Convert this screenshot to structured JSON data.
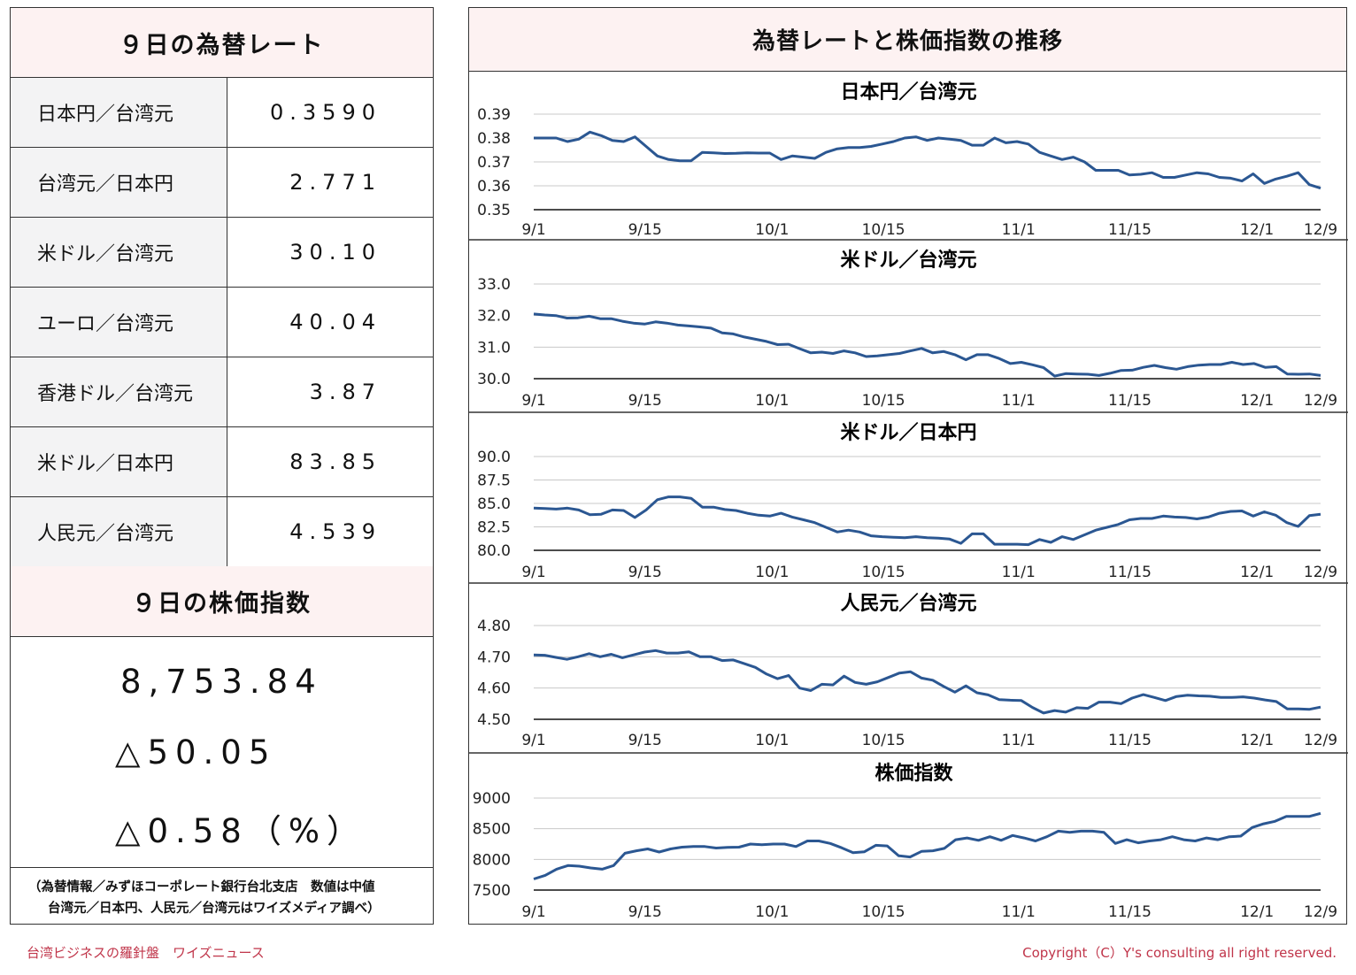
{
  "rates": {
    "title": "９日の為替レート",
    "rows": [
      {
        "label": "日本円／台湾元",
        "value": "0.3590"
      },
      {
        "label": "台湾元／日本円",
        "value": "2.771"
      },
      {
        "label": "米ドル／台湾元",
        "value": "30.10"
      },
      {
        "label": "ユーロ／台湾元",
        "value": "40.04"
      },
      {
        "label": "香港ドル／台湾元",
        "value": "3.87"
      },
      {
        "label": "米ドル／日本円",
        "value": "83.85"
      },
      {
        "label": "人民元／台湾元",
        "value": "4.539"
      }
    ]
  },
  "stock": {
    "title": "９日の株価指数",
    "index": "8,753.84",
    "change": "△50.05",
    "percent": "△0.58（%）"
  },
  "note": {
    "line1": "（為替情報／みずほコーポレート銀行台北支店　数値は中値",
    "line2": "台湾元／日本円、人民元／台湾元はワイズメディア調べ）"
  },
  "right_title": "為替レートと株価指数の推移",
  "footer": {
    "left": "台湾ビジネスの羅針盤　ワイズニュース",
    "right": "Copyright（C）Y's consulting all right reserved."
  },
  "colors": {
    "line": "#2b5792",
    "header_bg": "#fdf2f2",
    "label_bg": "#f3f3f4",
    "footer": "#c0354a"
  },
  "chart_data": [
    {
      "type": "line",
      "title": "日本円／台湾元",
      "x_ticks": [
        "9/1",
        "9/15",
        "10/1",
        "10/15",
        "11/1",
        "11/15",
        "12/1",
        "12/9"
      ],
      "y_ticks": [
        "0.35",
        "0.36",
        "0.37",
        "0.38",
        "0.39"
      ],
      "ylim": [
        0.35,
        0.39
      ],
      "values": [
        0.38,
        0.38,
        0.38,
        0.3785,
        0.3795,
        0.3825,
        0.381,
        0.379,
        0.3785,
        0.3805,
        0.3765,
        0.3725,
        0.371,
        0.3705,
        0.3705,
        0.374,
        0.3738,
        0.3735,
        0.3736,
        0.3738,
        0.3737,
        0.3737,
        0.371,
        0.3725,
        0.372,
        0.3715,
        0.374,
        0.3755,
        0.376,
        0.376,
        0.3765,
        0.3775,
        0.3785,
        0.38,
        0.3805,
        0.379,
        0.38,
        0.3795,
        0.379,
        0.377,
        0.377,
        0.38,
        0.378,
        0.3785,
        0.3775,
        0.374,
        0.3725,
        0.371,
        0.372,
        0.37,
        0.3665,
        0.3665,
        0.3665,
        0.3645,
        0.3648,
        0.3655,
        0.3635,
        0.3635,
        0.3645,
        0.3655,
        0.365,
        0.3635,
        0.3632,
        0.362,
        0.365,
        0.361,
        0.3628,
        0.364,
        0.3655,
        0.3605,
        0.359
      ]
    },
    {
      "type": "line",
      "title": "米ドル／台湾元",
      "x_ticks": [
        "9/1",
        "9/15",
        "10/1",
        "10/15",
        "11/1",
        "11/15",
        "12/1",
        "12/9"
      ],
      "y_ticks": [
        "30.0",
        "31.0",
        "32.0",
        "33.0"
      ],
      "ylim": [
        30.0,
        33.0
      ],
      "values": [
        32.05,
        32.02,
        32.0,
        31.92,
        31.93,
        31.98,
        31.9,
        31.9,
        31.82,
        31.76,
        31.73,
        31.8,
        31.76,
        31.7,
        31.67,
        31.64,
        31.6,
        31.45,
        31.42,
        31.32,
        31.25,
        31.18,
        31.08,
        31.09,
        30.95,
        30.82,
        30.84,
        30.8,
        30.88,
        30.82,
        30.7,
        30.72,
        30.76,
        30.8,
        30.88,
        30.96,
        30.82,
        30.86,
        30.76,
        30.6,
        30.76,
        30.76,
        30.64,
        30.48,
        30.52,
        30.44,
        30.35,
        30.08,
        30.16,
        30.15,
        30.14,
        30.1,
        30.17,
        30.26,
        30.27,
        30.36,
        30.42,
        30.35,
        30.3,
        30.38,
        30.43,
        30.45,
        30.45,
        30.52,
        30.45,
        30.48,
        30.36,
        30.38,
        30.15,
        30.14,
        30.15,
        30.1
      ]
    },
    {
      "type": "line",
      "title": "米ドル／日本円",
      "x_ticks": [
        "9/1",
        "9/15",
        "10/1",
        "10/15",
        "11/1",
        "11/15",
        "12/1",
        "12/9"
      ],
      "y_ticks": [
        "80.0",
        "82.5",
        "85.0",
        "87.5",
        "90.0"
      ],
      "ylim": [
        80.0,
        90.0
      ],
      "values": [
        84.5,
        84.45,
        84.4,
        84.5,
        84.3,
        83.8,
        83.85,
        84.3,
        84.25,
        83.5,
        84.3,
        85.4,
        85.7,
        85.7,
        85.55,
        84.6,
        84.6,
        84.35,
        84.25,
        83.95,
        83.75,
        83.65,
        83.95,
        83.55,
        83.25,
        82.95,
        82.45,
        81.95,
        82.15,
        81.95,
        81.55,
        81.45,
        81.4,
        81.35,
        81.45,
        81.35,
        81.3,
        81.2,
        80.75,
        81.75,
        81.75,
        80.65,
        80.65,
        80.65,
        80.6,
        81.15,
        80.85,
        81.45,
        81.15,
        81.65,
        82.15,
        82.45,
        82.75,
        83.25,
        83.4,
        83.4,
        83.65,
        83.55,
        83.5,
        83.35,
        83.55,
        83.95,
        84.15,
        84.2,
        83.65,
        84.1,
        83.75,
        82.95,
        82.55,
        83.7,
        83.85
      ]
    },
    {
      "type": "line",
      "title": "人民元／台湾元",
      "x_ticks": [
        "9/1",
        "9/15",
        "10/1",
        "10/15",
        "11/1",
        "11/15",
        "12/1",
        "12/9"
      ],
      "y_ticks": [
        "4.50",
        "4.60",
        "4.70",
        "4.80"
      ],
      "ylim": [
        4.5,
        4.8
      ],
      "values": [
        4.706,
        4.705,
        4.698,
        4.692,
        4.7,
        4.71,
        4.7,
        4.708,
        4.697,
        4.706,
        4.715,
        4.72,
        4.712,
        4.712,
        4.716,
        4.7,
        4.7,
        4.688,
        4.69,
        4.678,
        4.666,
        4.645,
        4.63,
        4.64,
        4.6,
        4.592,
        4.612,
        4.61,
        4.638,
        4.618,
        4.612,
        4.62,
        4.634,
        4.648,
        4.652,
        4.632,
        4.625,
        4.605,
        4.587,
        4.607,
        4.585,
        4.578,
        4.563,
        4.561,
        4.56,
        4.538,
        4.52,
        4.528,
        4.523,
        4.537,
        4.535,
        4.555,
        4.555,
        4.55,
        4.568,
        4.579,
        4.57,
        4.56,
        4.573,
        4.577,
        4.575,
        4.574,
        4.57,
        4.57,
        4.572,
        4.568,
        4.562,
        4.557,
        4.533,
        4.533,
        4.532,
        4.539
      ]
    },
    {
      "type": "line",
      "title": "株価指数",
      "x_ticks": [
        "9/1",
        "9/15",
        "10/1",
        "10/15",
        "11/1",
        "11/15",
        "12/1",
        "12/9"
      ],
      "y_ticks": [
        "7500",
        "8000",
        "8500",
        "9000"
      ],
      "ylim": [
        7500,
        9000
      ],
      "values": [
        7680,
        7740,
        7840,
        7900,
        7890,
        7860,
        7840,
        7900,
        8100,
        8140,
        8170,
        8120,
        8170,
        8200,
        8210,
        8210,
        8185,
        8195,
        8200,
        8250,
        8240,
        8250,
        8250,
        8210,
        8300,
        8300,
        8260,
        8190,
        8110,
        8125,
        8230,
        8220,
        8060,
        8040,
        8130,
        8140,
        8180,
        8320,
        8350,
        8310,
        8370,
        8310,
        8390,
        8350,
        8300,
        8370,
        8460,
        8440,
        8460,
        8460,
        8440,
        8260,
        8320,
        8270,
        8300,
        8320,
        8370,
        8320,
        8300,
        8350,
        8320,
        8370,
        8380,
        8520,
        8580,
        8620,
        8700,
        8700,
        8700,
        8750
      ]
    }
  ]
}
